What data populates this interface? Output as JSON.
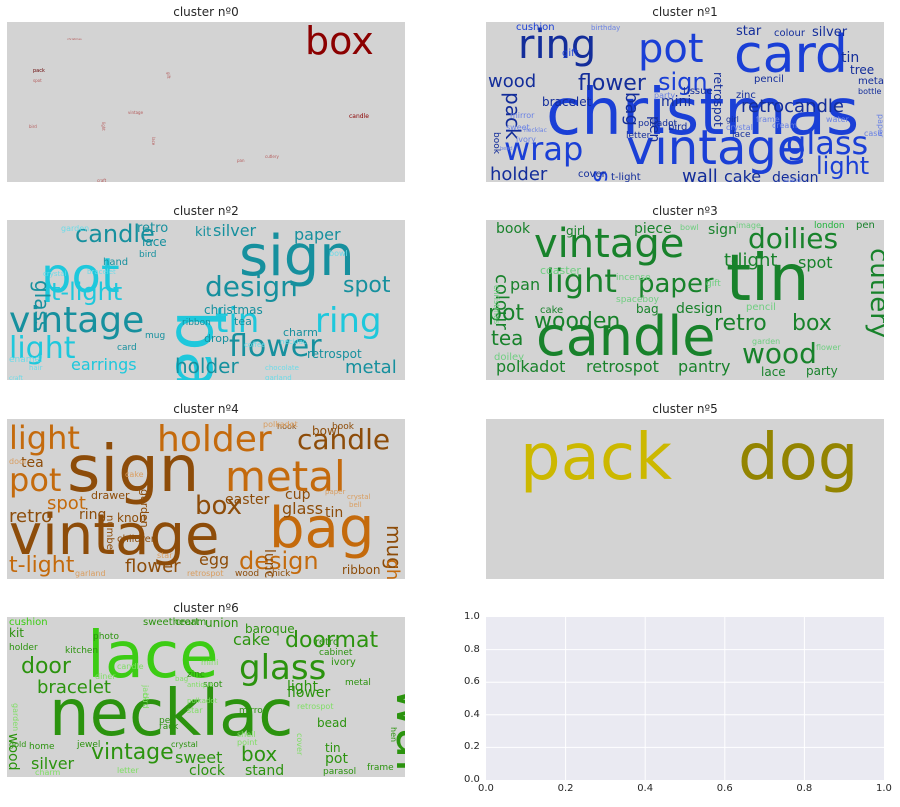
{
  "chart_data": [
    {
      "type": "wordcloud",
      "title": "cluster nº0",
      "color": "#8b0000",
      "words": [
        "box",
        "pack",
        "candle",
        "vintage",
        "spot",
        "gift",
        "pan",
        "cutlery",
        "craft",
        "christmas",
        "bird",
        "light",
        "lace"
      ]
    },
    {
      "type": "wordcloud",
      "title": "cluster nº1",
      "color": "#1a3fd6",
      "words": [
        "christmas",
        "card",
        "vintage",
        "ring",
        "pot",
        "wrap",
        "glass",
        "retrocandle",
        "flower",
        "wood",
        "sign",
        "pack",
        "bag",
        "spot",
        "holder",
        "light",
        "wall",
        "cake",
        "design",
        "star",
        "tin",
        "tree",
        "silver",
        "colour",
        "cushion",
        "birthday",
        "retrospot",
        "gift",
        "bracelet",
        "mini",
        "tissue",
        "zinc",
        "pencil",
        "metal",
        "bottle",
        "pen",
        "party",
        "mirror",
        "ivory",
        "sweet",
        "frame",
        "polkadot",
        "letter",
        "bird",
        "crystal",
        "lace",
        "cream",
        "girl",
        "water",
        "paper",
        "book",
        "cover",
        "t-light",
        "case",
        "necklac",
        "bead",
        "stand"
      ]
    },
    {
      "type": "wordcloud",
      "title": "cluster nº2",
      "color": "#1ec8dc",
      "words": [
        "bag",
        "sign",
        "pot",
        "vintage",
        "tin",
        "ring",
        "light",
        "flower",
        "design",
        "t-light",
        "candle",
        "glass",
        "spot",
        "holder",
        "metal",
        "earrings",
        "silver",
        "paper",
        "retro",
        "lace",
        "kit",
        "christmas",
        "retrospot",
        "charm",
        "tea",
        "drop",
        "hand",
        "bird",
        "ribbon",
        "mug",
        "card",
        "garden",
        "bracelet",
        "crystal",
        "enamel",
        "chocolate",
        "necklac",
        "bowl",
        "coffee",
        "garland",
        "hair",
        "craft"
      ]
    },
    {
      "type": "wordcloud",
      "title": "cluster nº3",
      "color": "#22b43c",
      "words": [
        "candle",
        "tin",
        "vintage",
        "light",
        "paper",
        "doilies",
        "cutlery",
        "wood",
        "pot",
        "wooden",
        "retro",
        "box",
        "t-light",
        "spot",
        "tea",
        "pan",
        "colour",
        "polkadot",
        "retrospot",
        "pantry",
        "lace",
        "party",
        "book",
        "girl",
        "piece",
        "sign",
        "coaster",
        "bag",
        "design",
        "cake",
        "doiley",
        "pencil",
        "christmas",
        "incense",
        "spaceboy",
        "garden",
        "flower",
        "image",
        "pen",
        "london",
        "gift",
        "bowl"
      ]
    },
    {
      "type": "wordcloud",
      "title": "cluster nº4",
      "color": "#c46a0c",
      "words": [
        "sign",
        "vintage",
        "bag",
        "metal",
        "holder",
        "light",
        "pot",
        "candle",
        "box",
        "design",
        "mug",
        "christmas",
        "t-light",
        "flower",
        "retro",
        "spot",
        "tea",
        "ring",
        "glass",
        "easter",
        "tin",
        "cup",
        "egg",
        "lunch",
        "knob",
        "children",
        "drawer",
        "number",
        "garden",
        "ribbon",
        "bowl",
        "book",
        "hook",
        "polkadot",
        "cake",
        "door",
        "star",
        "garland",
        "retrospot",
        "wood",
        "chick",
        "paper",
        "crystal",
        "bell"
      ]
    },
    {
      "type": "wordcloud",
      "title": "cluster nº5",
      "color": "#ccb800",
      "words": [
        "pack",
        "dog"
      ]
    },
    {
      "type": "wordcloud",
      "title": "cluster nº6",
      "color": "#3ccc14",
      "words": [
        "necklac",
        "lace",
        "wall",
        "glass",
        "doormat",
        "door",
        "vintage",
        "bracelet",
        "box",
        "silver",
        "sweet",
        "clock",
        "stand",
        "pot",
        "cake",
        "light",
        "flower",
        "bead",
        "tin",
        "kit",
        "cushion",
        "photo",
        "sweetheart",
        "cream",
        "union",
        "baroque",
        "kitchen",
        "holder",
        "zinc",
        "retro",
        "cabinet",
        "ivory",
        "diamante",
        "metal",
        "spot",
        "mirror",
        "polkadot",
        "garden",
        "wood",
        "gold",
        "home",
        "jewel",
        "crystal",
        "pen",
        "rack",
        "charm",
        "letter",
        "frame",
        "parasol",
        "hen",
        "shell",
        "point",
        "cover",
        "bird",
        "jack",
        "star",
        "antique",
        "bag",
        "candle",
        "diner",
        "mini",
        "retrospot"
      ]
    },
    {
      "type": "empty",
      "title": "",
      "xlim": [
        0.0,
        1.0
      ],
      "ylim": [
        0.0,
        1.0
      ],
      "xticks": [
        "0.0",
        "0.2",
        "0.4",
        "0.6",
        "0.8",
        "1.0"
      ],
      "yticks": [
        "0.0",
        "0.2",
        "0.4",
        "0.6",
        "0.8",
        "1.0"
      ],
      "grid": true,
      "background": "#eaeaf2"
    }
  ]
}
